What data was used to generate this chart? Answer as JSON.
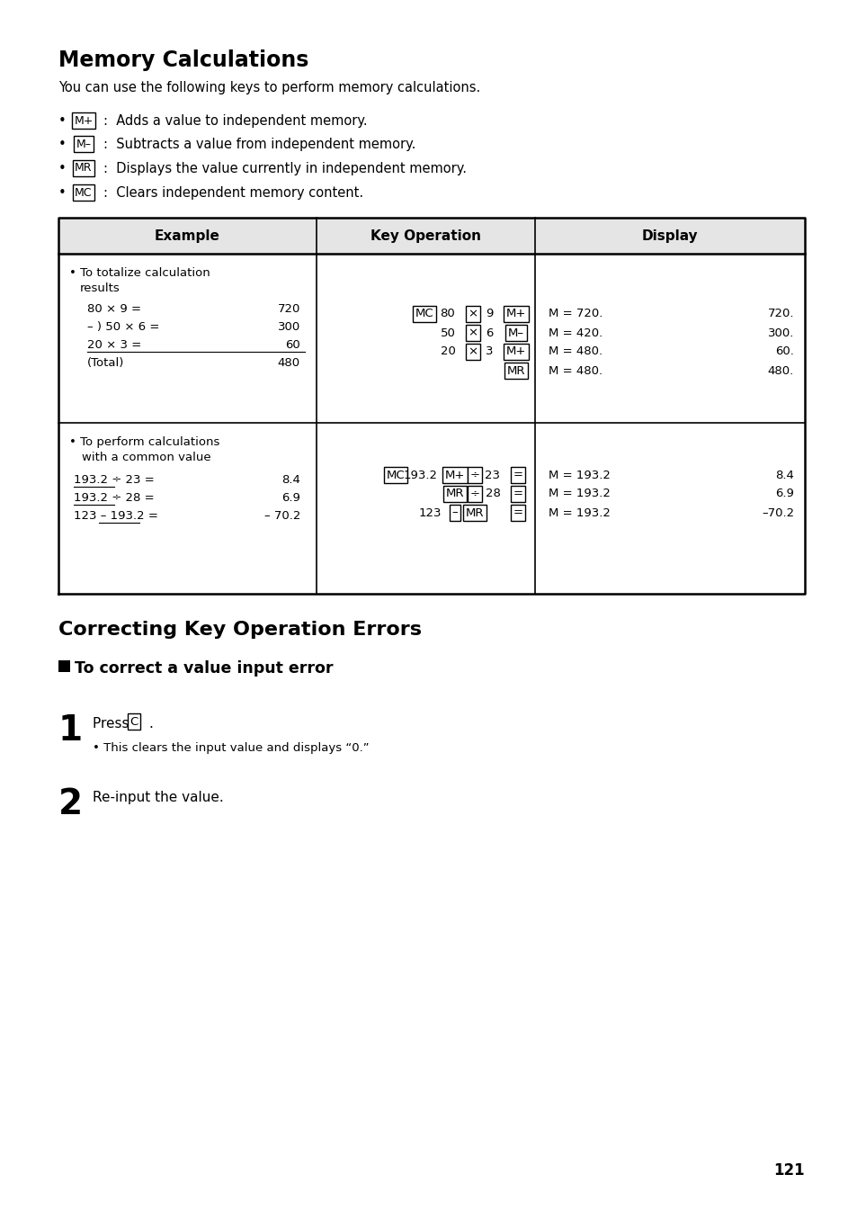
{
  "title": "Memory Calculations",
  "subtitle": "You can use the following keys to perform memory calculations.",
  "bullets": [
    {
      "key": "M+",
      "text": ":  Adds a value to independent memory."
    },
    {
      "key": "M–",
      "text": ":  Subtracts a value from independent memory."
    },
    {
      "key": "MR",
      "text": ":  Displays the value currently in independent memory."
    },
    {
      "key": "MC",
      "text": ":  Clears independent memory content."
    }
  ],
  "table_headers": [
    "Example",
    "Key Operation",
    "Display"
  ],
  "section2_title": "Correcting Key Operation Errors",
  "step1_bullet": "This clears the input value and displays “0.”",
  "step2_text": "Re-input the value.",
  "page_number": "121",
  "bg_color": "#ffffff",
  "text_color": "#000000"
}
